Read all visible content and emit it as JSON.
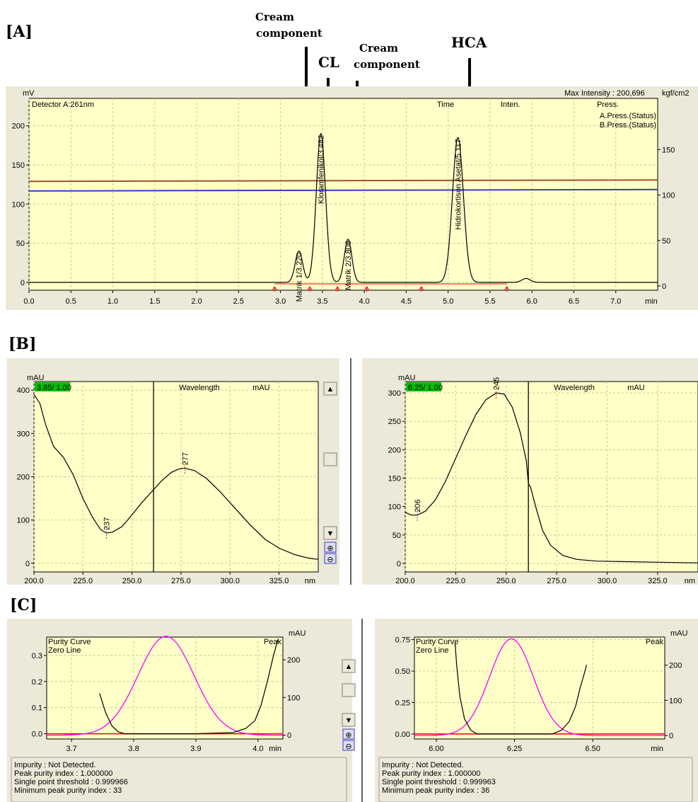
{
  "panel_labels": {
    "a": "[A]",
    "b": "[B]",
    "c": "[C]"
  },
  "annotations": {
    "cream1_line1": "Cream",
    "cream1_line2": "component",
    "cl": "CL",
    "cream2_line1": "Cream",
    "cream2_line2": "component",
    "hca": "HCA"
  },
  "colors": {
    "plot_bg": "#ffffc8",
    "frame_bg": "#ece9d8",
    "trace": "#000000",
    "a_press": "#a0522d",
    "b_press": "#3a3ad0",
    "baseline_marks": "#ff0000",
    "purity": "#ff00ff",
    "zero_line": "#ff0000",
    "peak_label": "#ff00ff",
    "wavelength_tag": "#00c000",
    "grid": "#c8c8a0"
  },
  "chart_data": [
    {
      "type": "line",
      "panel": "A",
      "y_unit": "mV",
      "y2_unit": "kgf/cm2",
      "x_unit": "min",
      "detector": "Detector A:261nm",
      "max_intensity": "Max Intensity : 200,696",
      "legend_cols": {
        "time": "Time",
        "inten": "Inten.",
        "press": "Press."
      },
      "xlim": [
        0.0,
        7.5
      ],
      "ylim": [
        -10,
        235
      ],
      "y2lim": [
        0,
        200
      ],
      "x_ticks": [
        "0.0",
        "0.5",
        "1.0",
        "1.5",
        "2.0",
        "2.5",
        "3.0",
        "3.5",
        "4.0",
        "4.5",
        "5.0",
        "5.5",
        "6.0",
        "6.5",
        "7.0"
      ],
      "y_ticks": [
        "0",
        "50",
        "100",
        "150",
        "200"
      ],
      "y2_ticks": [
        "0",
        "50",
        "100",
        "150"
      ],
      "peaks": [
        {
          "name": "Matrik 1/3.220",
          "rt": 3.22,
          "height": 40,
          "width": 0.045
        },
        {
          "name": "Kloramfenikol/3.482",
          "rt": 3.482,
          "height": 190,
          "width": 0.055
        },
        {
          "name": "Matrik 2/3.806",
          "rt": 3.806,
          "height": 55,
          "width": 0.045
        },
        {
          "name": "Hidrokortison Asetat/5.117",
          "rt": 5.117,
          "height": 185,
          "width": 0.065
        }
      ],
      "minor_peak": {
        "rt": 5.93,
        "height": 5,
        "width": 0.05
      },
      "series": [
        {
          "name": "A.Press.(Status)",
          "y2": 115
        },
        {
          "name": "B.Press.(Status)",
          "y2": 106
        }
      ],
      "baseline_markers": [
        2.93,
        3.35,
        3.68,
        4.03,
        4.68,
        5.7
      ]
    },
    {
      "type": "line",
      "panel": "B-left",
      "y_unit": "mAU",
      "x_unit": "nm",
      "tag": "3.85/ 1.00",
      "col1": "Wavelength",
      "col2": "mAU",
      "xlim": [
        200,
        345
      ],
      "ylim": [
        -20,
        420
      ],
      "x_ticks": [
        "200.0",
        "225.0",
        "250.0",
        "275.0",
        "300.0",
        "325.0"
      ],
      "y_ticks": [
        "0",
        "100",
        "200",
        "300",
        "400"
      ],
      "cursor_nm": 261,
      "points": [
        [
          200,
          390
        ],
        [
          203,
          370
        ],
        [
          206,
          320
        ],
        [
          210,
          270
        ],
        [
          215,
          245
        ],
        [
          220,
          205
        ],
        [
          225,
          150
        ],
        [
          230,
          105
        ],
        [
          234,
          78
        ],
        [
          237,
          70
        ],
        [
          240,
          72
        ],
        [
          245,
          85
        ],
        [
          250,
          112
        ],
        [
          255,
          140
        ],
        [
          260,
          165
        ],
        [
          265,
          190
        ],
        [
          270,
          210
        ],
        [
          274,
          218
        ],
        [
          277,
          220
        ],
        [
          282,
          214
        ],
        [
          288,
          196
        ],
        [
          295,
          165
        ],
        [
          302,
          130
        ],
        [
          310,
          90
        ],
        [
          318,
          55
        ],
        [
          325,
          35
        ],
        [
          333,
          20
        ],
        [
          340,
          12
        ],
        [
          345,
          9
        ]
      ],
      "labels": [
        {
          "text": "237",
          "nm": 237,
          "v": 70
        },
        {
          "text": "277",
          "nm": 277,
          "v": 220
        }
      ]
    },
    {
      "type": "line",
      "panel": "B-right",
      "y_unit": "mAU",
      "x_unit": "nm",
      "tag": "6.25/ 1.00",
      "col1": "Wavelength",
      "col2": "mAU",
      "xlim": [
        200,
        345
      ],
      "ylim": [
        -15,
        320
      ],
      "x_ticks": [
        "200.0",
        "225.0",
        "250.0",
        "275.0",
        "300.0",
        "325.0"
      ],
      "y_ticks": [
        "0",
        "50",
        "100",
        "150",
        "200",
        "250",
        "300"
      ],
      "cursor_nm": 261,
      "points": [
        [
          200,
          90
        ],
        [
          203,
          85
        ],
        [
          206,
          85
        ],
        [
          210,
          92
        ],
        [
          215,
          112
        ],
        [
          220,
          145
        ],
        [
          225,
          185
        ],
        [
          230,
          225
        ],
        [
          235,
          262
        ],
        [
          240,
          288
        ],
        [
          245,
          300
        ],
        [
          249,
          298
        ],
        [
          253,
          275
        ],
        [
          257,
          230
        ],
        [
          260,
          180
        ],
        [
          261,
          140
        ],
        [
          262,
          135
        ],
        [
          265,
          95
        ],
        [
          268,
          58
        ],
        [
          272,
          32
        ],
        [
          278,
          14
        ],
        [
          285,
          7
        ],
        [
          295,
          4
        ],
        [
          310,
          3
        ],
        [
          325,
          2
        ],
        [
          345,
          1
        ]
      ],
      "labels": [
        {
          "text": "206",
          "nm": 206,
          "v": 85
        },
        {
          "text": "245",
          "nm": 245,
          "v": 300
        }
      ]
    },
    {
      "type": "line",
      "panel": "C-left",
      "y_unit": "mAU",
      "x_unit": "min",
      "legend": [
        "Purity Curve",
        "Zero Line",
        "Peak"
      ],
      "xlim": [
        3.66,
        4.04
      ],
      "ylim": [
        -0.02,
        0.37
      ],
      "y2lim": [
        -10,
        260
      ],
      "x_ticks": [
        "3.7",
        "3.8",
        "3.9",
        "4.0"
      ],
      "y_ticks": [
        "0.0",
        "0.1",
        "0.2",
        "0.3"
      ],
      "y2_ticks": [
        "0",
        "100",
        "200"
      ],
      "purity_points": [
        [
          3.745,
          0.155
        ],
        [
          3.755,
          0.08
        ],
        [
          3.765,
          0.03
        ],
        [
          3.775,
          0.008
        ],
        [
          3.785,
          0.0
        ],
        [
          3.9,
          0.0
        ],
        [
          3.96,
          0.005
        ],
        [
          3.98,
          0.02
        ],
        [
          3.995,
          0.05
        ],
        [
          4.005,
          0.11
        ],
        [
          4.015,
          0.2
        ],
        [
          4.025,
          0.3
        ],
        [
          4.032,
          0.36
        ]
      ],
      "peak": {
        "center": 3.852,
        "height": 262,
        "sigma": 0.045
      },
      "info": [
        "Impurity : Not Detected.",
        "Peak purity index : 1.000000",
        "Single point threshold : 0.999966",
        "Minimum peak purity index : 33"
      ]
    },
    {
      "type": "line",
      "panel": "C-right",
      "y_unit": "mAU",
      "x_unit": "min",
      "legend": [
        "Purity Curve",
        "Zero Line",
        "Peak"
      ],
      "xlim": [
        5.93,
        6.73
      ],
      "ylim": [
        -0.04,
        0.77
      ],
      "y2lim": [
        -10,
        280
      ],
      "x_ticks": [
        "6.00",
        "6.25",
        "6.50"
      ],
      "y_ticks": [
        "0.00",
        "0.25",
        "0.50",
        "0.75"
      ],
      "y2_ticks": [
        "0",
        "100",
        "200"
      ],
      "purity_points": [
        [
          6.06,
          0.72
        ],
        [
          6.065,
          0.55
        ],
        [
          6.075,
          0.3
        ],
        [
          6.09,
          0.12
        ],
        [
          6.11,
          0.03
        ],
        [
          6.13,
          0.0
        ],
        [
          6.37,
          0.0
        ],
        [
          6.4,
          0.03
        ],
        [
          6.425,
          0.1
        ],
        [
          6.445,
          0.22
        ],
        [
          6.46,
          0.37
        ],
        [
          6.475,
          0.5
        ],
        [
          6.48,
          0.55
        ]
      ],
      "peak": {
        "center": 6.24,
        "height": 275,
        "sigma": 0.07
      },
      "info": [
        "Impurity : Not Detected.",
        "Peak purity index : 1.000000",
        "Single point threshold : 0.999963",
        "Minimum peak purity index : 36"
      ]
    }
  ]
}
